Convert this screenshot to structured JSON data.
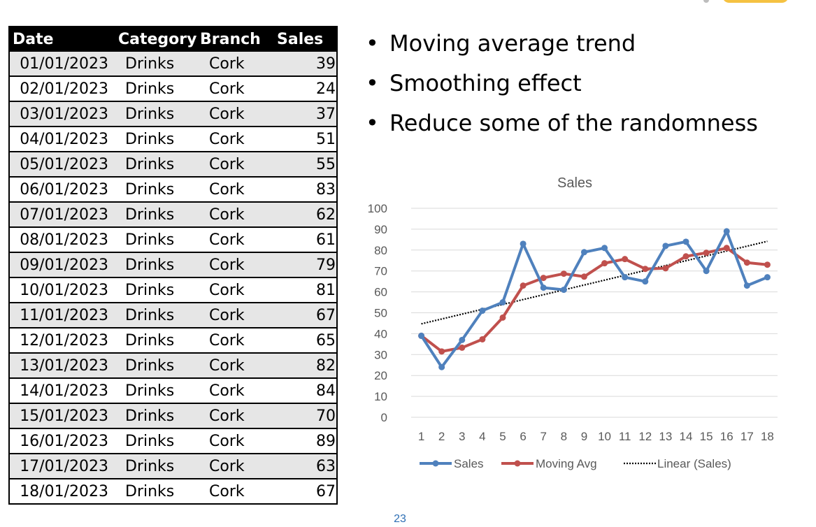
{
  "table": {
    "headers": [
      "Date",
      "Category",
      "Branch",
      "Sales"
    ],
    "rows": [
      [
        "01/01/2023",
        "Drinks",
        "Cork",
        "39"
      ],
      [
        "02/01/2023",
        "Drinks",
        "Cork",
        "24"
      ],
      [
        "03/01/2023",
        "Drinks",
        "Cork",
        "37"
      ],
      [
        "04/01/2023",
        "Drinks",
        "Cork",
        "51"
      ],
      [
        "05/01/2023",
        "Drinks",
        "Cork",
        "55"
      ],
      [
        "06/01/2023",
        "Drinks",
        "Cork",
        "83"
      ],
      [
        "07/01/2023",
        "Drinks",
        "Cork",
        "62"
      ],
      [
        "08/01/2023",
        "Drinks",
        "Cork",
        "61"
      ],
      [
        "09/01/2023",
        "Drinks",
        "Cork",
        "79"
      ],
      [
        "10/01/2023",
        "Drinks",
        "Cork",
        "81"
      ],
      [
        "11/01/2023",
        "Drinks",
        "Cork",
        "67"
      ],
      [
        "12/01/2023",
        "Drinks",
        "Cork",
        "65"
      ],
      [
        "13/01/2023",
        "Drinks",
        "Cork",
        "82"
      ],
      [
        "14/01/2023",
        "Drinks",
        "Cork",
        "84"
      ],
      [
        "15/01/2023",
        "Drinks",
        "Cork",
        "70"
      ],
      [
        "16/01/2023",
        "Drinks",
        "Cork",
        "89"
      ],
      [
        "17/01/2023",
        "Drinks",
        "Cork",
        "63"
      ],
      [
        "18/01/2023",
        "Drinks",
        "Cork",
        "67"
      ]
    ]
  },
  "bullets": [
    "Moving average trend",
    "Smoothing effect",
    "Reduce some of the randomness"
  ],
  "chart_data": {
    "type": "line",
    "title": "Sales",
    "x": [
      1,
      2,
      3,
      4,
      5,
      6,
      7,
      8,
      9,
      10,
      11,
      12,
      13,
      14,
      15,
      16,
      17,
      18
    ],
    "ylim": [
      0,
      100
    ],
    "yticks": [
      0,
      10,
      20,
      30,
      40,
      50,
      60,
      70,
      80,
      90,
      100
    ],
    "grid": true,
    "legend_position": "bottom",
    "series": [
      {
        "name": "Sales",
        "color": "#4f81bd",
        "values": [
          39,
          24,
          37,
          51,
          55,
          83,
          62,
          61,
          79,
          81,
          67,
          65,
          82,
          84,
          70,
          89,
          63,
          67
        ]
      },
      {
        "name": "Moving Avg",
        "color": "#c0504d",
        "values": [
          39,
          31.5,
          33.3,
          37.3,
          47.7,
          63,
          66.7,
          68.7,
          67.3,
          73.7,
          75.7,
          71,
          71.3,
          77,
          78.7,
          81,
          74,
          73
        ]
      }
    ],
    "trendline": {
      "name": "Linear (Sales)",
      "color": "#000000",
      "start": 44.7,
      "end": 84.2
    }
  },
  "page_number": "23"
}
